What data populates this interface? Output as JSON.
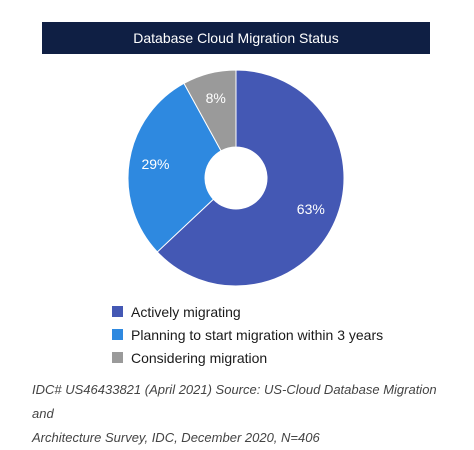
{
  "chart_data": {
    "type": "pie",
    "title": "Database Cloud Migration Status",
    "categories": [
      "Actively migrating",
      "Planning to start migration within 3 years",
      "Considering migration"
    ],
    "values": [
      63,
      29,
      8
    ],
    "value_labels": [
      "63%",
      "29%",
      "8%"
    ],
    "colors": [
      "#4458b4",
      "#2e89e0",
      "#9a9a9a"
    ],
    "donut": true,
    "legend_position": "bottom-left"
  },
  "source_lines": [
    "IDC# US46433821 (April 2021) Source: US-Cloud Database Migration and",
    "Architecture Survey, IDC, December 2020, N=406"
  ]
}
